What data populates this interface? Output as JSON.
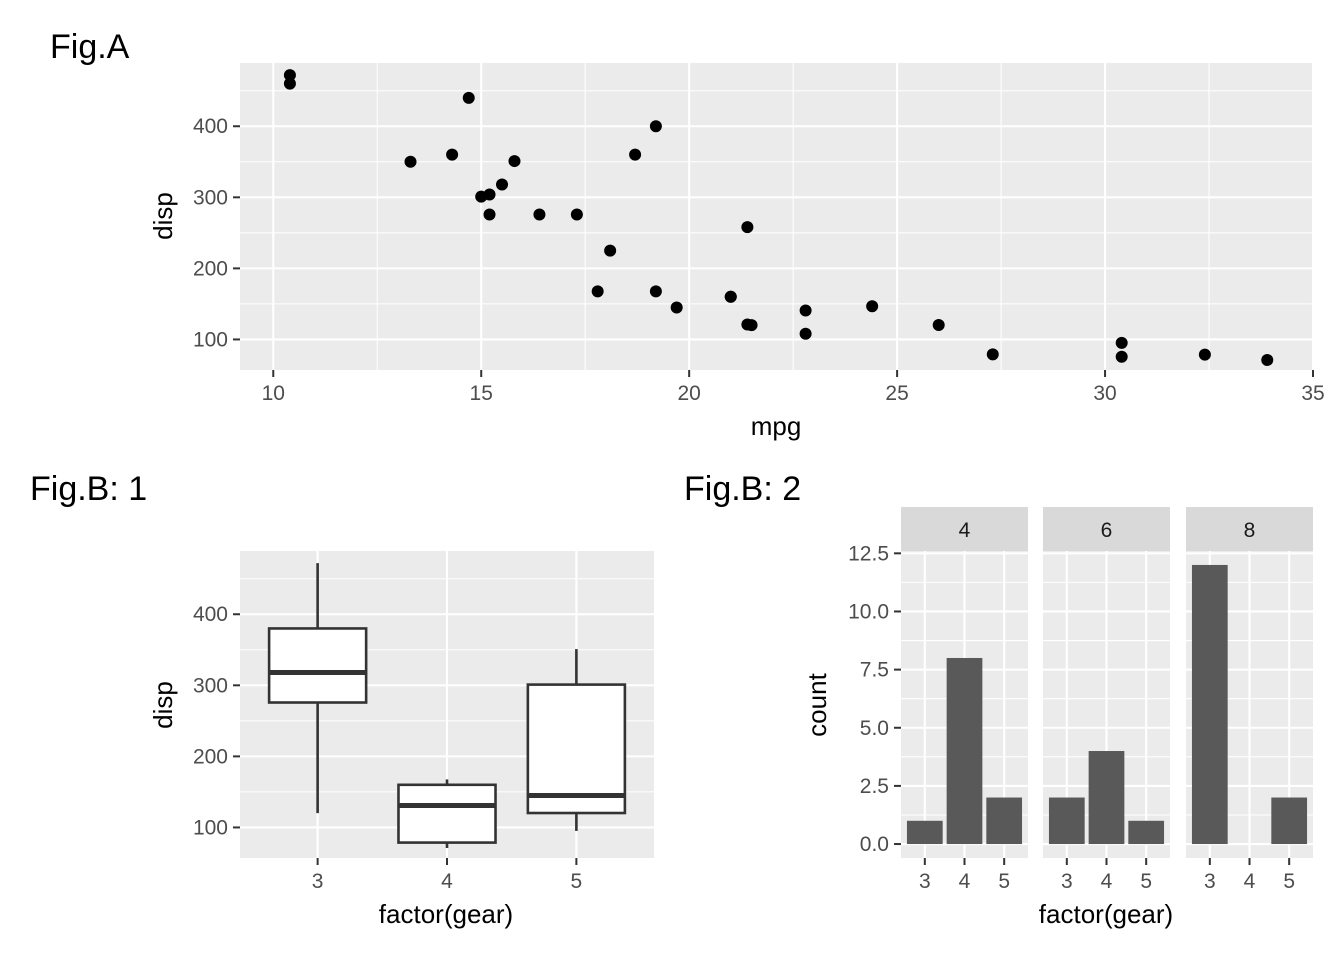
{
  "figures": {
    "a_tag": "Fig.A",
    "b1_tag": "Fig.B: 1",
    "b2_tag": "Fig.B: 2"
  },
  "chart_data": [
    {
      "id": "fig-a",
      "type": "scatter",
      "xlabel": "mpg",
      "ylabel": "disp",
      "xlim": [
        9.2,
        35.0
      ],
      "ylim": [
        57,
        489
      ],
      "x_ticks": [
        10,
        15,
        20,
        25,
        30,
        35
      ],
      "y_ticks": [
        100,
        200,
        300,
        400
      ],
      "points": [
        {
          "x": 21.0,
          "y": 160
        },
        {
          "x": 21.0,
          "y": 160
        },
        {
          "x": 22.8,
          "y": 108
        },
        {
          "x": 21.4,
          "y": 258
        },
        {
          "x": 18.7,
          "y": 360
        },
        {
          "x": 18.1,
          "y": 225
        },
        {
          "x": 14.3,
          "y": 360
        },
        {
          "x": 24.4,
          "y": 146.7
        },
        {
          "x": 22.8,
          "y": 140.8
        },
        {
          "x": 19.2,
          "y": 167.6
        },
        {
          "x": 17.8,
          "y": 167.6
        },
        {
          "x": 16.4,
          "y": 275.8
        },
        {
          "x": 17.3,
          "y": 275.8
        },
        {
          "x": 15.2,
          "y": 275.8
        },
        {
          "x": 10.4,
          "y": 472
        },
        {
          "x": 10.4,
          "y": 460
        },
        {
          "x": 14.7,
          "y": 440
        },
        {
          "x": 32.4,
          "y": 78.7
        },
        {
          "x": 30.4,
          "y": 75.7
        },
        {
          "x": 33.9,
          "y": 71.1
        },
        {
          "x": 21.5,
          "y": 120.1
        },
        {
          "x": 15.5,
          "y": 318
        },
        {
          "x": 15.2,
          "y": 304
        },
        {
          "x": 13.3,
          "y": 350
        },
        {
          "x": 19.2,
          "y": 400
        },
        {
          "x": 27.3,
          "y": 79
        },
        {
          "x": 26.0,
          "y": 120.3
        },
        {
          "x": 30.4,
          "y": 95.1
        },
        {
          "x": 15.8,
          "y": 351
        },
        {
          "x": 19.7,
          "y": 145
        },
        {
          "x": 15.0,
          "y": 301
        },
        {
          "x": 21.4,
          "y": 121
        }
      ]
    },
    {
      "id": "fig-b1",
      "type": "box",
      "xlabel": "factor(gear)",
      "ylabel": "disp",
      "ylim": [
        57,
        489
      ],
      "y_ticks": [
        100,
        200,
        300,
        400
      ],
      "categories": [
        "3",
        "4",
        "5"
      ],
      "boxes": [
        {
          "category": "3",
          "min": 120.1,
          "q1": 275.8,
          "median": 318,
          "q3": 380,
          "max": 472
        },
        {
          "category": "4",
          "min": 71.1,
          "q1": 78.7,
          "median": 130.9,
          "q3": 160,
          "max": 167.6
        },
        {
          "category": "5",
          "min": 95.1,
          "q1": 120.3,
          "median": 145,
          "q3": 301,
          "max": 351
        }
      ]
    },
    {
      "id": "fig-b2",
      "type": "bar",
      "xlabel": "factor(gear)",
      "ylabel": "count",
      "ylim": [
        -0.6,
        12.6
      ],
      "y_ticks": [
        0.0,
        2.5,
        5.0,
        7.5,
        10.0,
        12.5
      ],
      "y_tick_labels": [
        "0.0",
        "2.5",
        "5.0",
        "7.5",
        "10.0",
        "12.5"
      ],
      "categories": [
        "3",
        "4",
        "5"
      ],
      "facets": [
        {
          "label": "4",
          "values": [
            1,
            8,
            2
          ]
        },
        {
          "label": "6",
          "values": [
            2,
            4,
            1
          ]
        },
        {
          "label": "8",
          "values": [
            12,
            0,
            2
          ]
        }
      ]
    }
  ]
}
